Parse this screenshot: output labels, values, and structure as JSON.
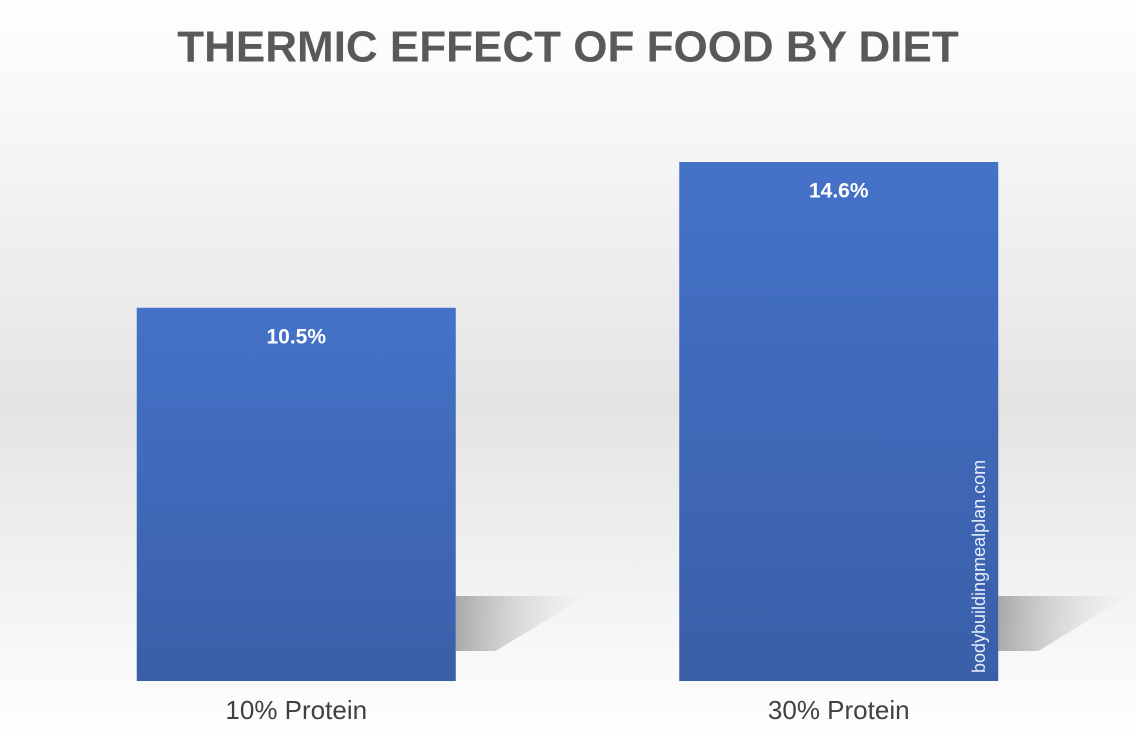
{
  "chart_data": {
    "type": "bar",
    "title": "THERMIC EFFECT OF FOOD BY DIET",
    "categories": [
      "10% Protein",
      "30% Protein"
    ],
    "values": [
      10.5,
      14.6
    ],
    "value_labels": [
      "10.5%",
      "14.6%"
    ],
    "color": "#4472c4",
    "watermark": "bodybuildingmealplan.com"
  }
}
